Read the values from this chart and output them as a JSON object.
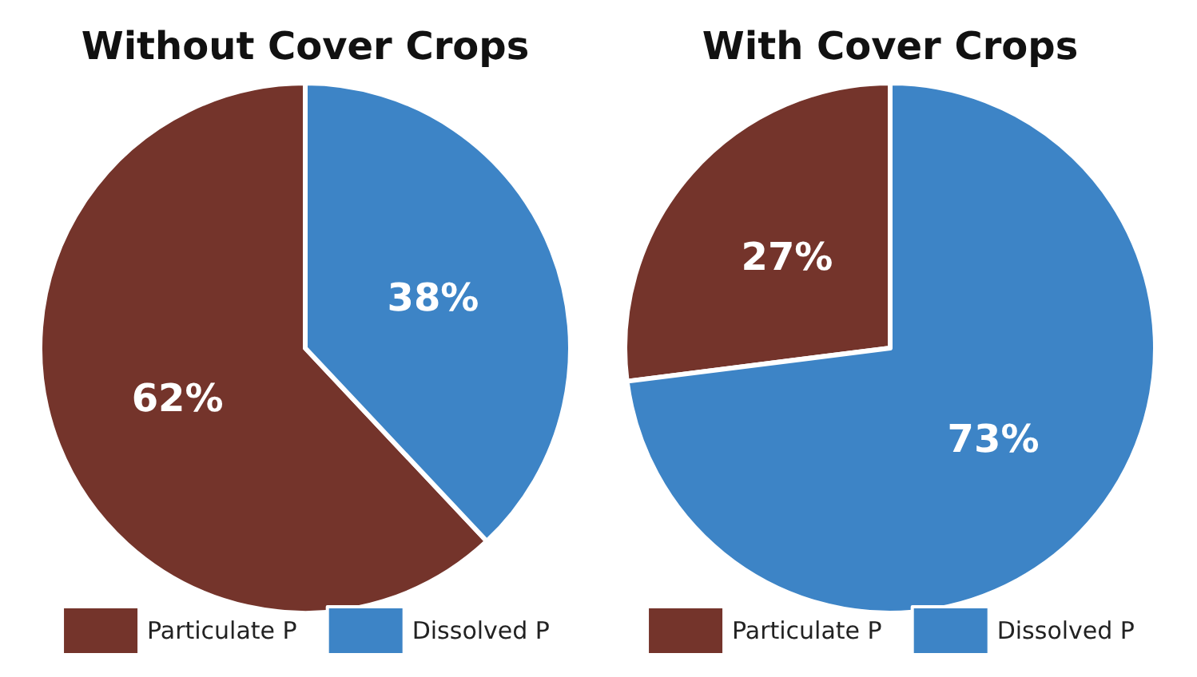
{
  "chart_data": [
    {
      "type": "pie",
      "title": "Without Cover Crops",
      "categories": [
        "Particulate P",
        "Dissolved P"
      ],
      "values": [
        62,
        38
      ],
      "colors": [
        "#74342b",
        "#3d84c6"
      ],
      "value_labels": [
        "62%",
        "38%"
      ],
      "legend": "bottom"
    },
    {
      "type": "pie",
      "title": "With Cover Crops",
      "categories": [
        "Particulate P",
        "Dissolved P"
      ],
      "values": [
        27,
        73
      ],
      "colors": [
        "#74342b",
        "#3d84c6"
      ],
      "value_labels": [
        "27%",
        "73%"
      ],
      "legend": "bottom"
    }
  ]
}
